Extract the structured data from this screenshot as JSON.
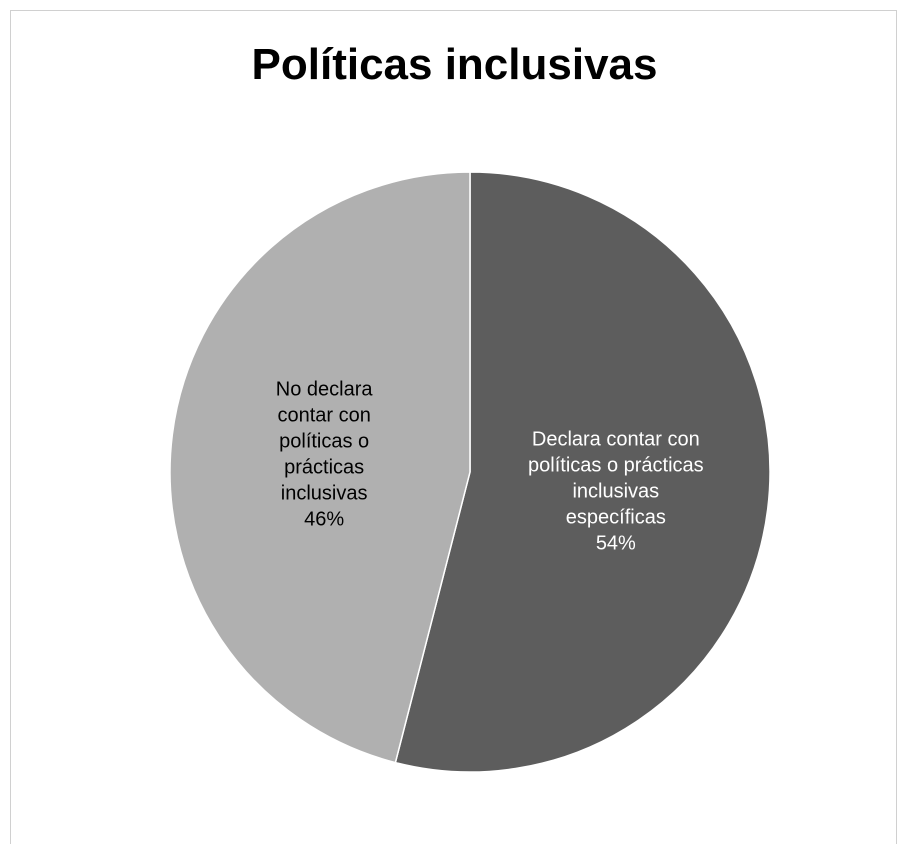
{
  "chart_data": {
    "type": "pie",
    "title": "Políticas inclusivas",
    "slices": [
      {
        "label_lines": [
          "Declara contar con",
          "políticas o prácticas",
          "inclusivas",
          "específicas"
        ],
        "value": 54,
        "value_label": "54%",
        "color": "#5d5d5d",
        "label_color": "#ffffff"
      },
      {
        "label_lines": [
          "No declara",
          "contar con",
          "políticas o",
          "prácticas",
          "inclusivas"
        ],
        "value": 46,
        "value_label": "46%",
        "color": "#b0b0b0",
        "label_color": "#000000"
      }
    ],
    "start_angle_deg": 0,
    "direction": "clockwise",
    "legend": "none"
  }
}
